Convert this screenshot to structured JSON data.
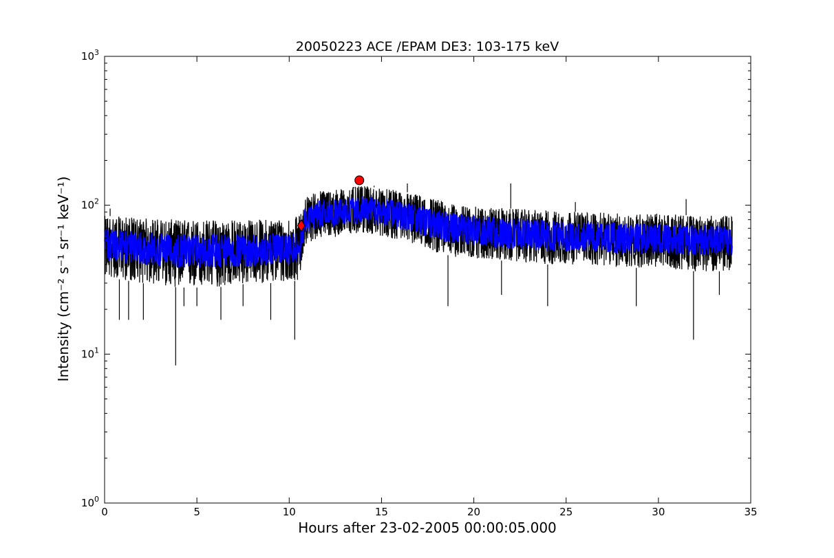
{
  "chart_data": {
    "type": "line",
    "title": "20050223 ACE /EPAM DE3: 103-175 keV",
    "xlabel": "Hours after 23-02-2005 00:00:05.000",
    "ylabel": "Intensity (cm⁻² s⁻¹ sr⁻¹ keV⁻¹)",
    "xlim": [
      0,
      35
    ],
    "ylim": [
      1,
      1000
    ],
    "yscale": "log",
    "grid": false,
    "x_ticks": [
      "0",
      "5",
      "10",
      "15",
      "20",
      "25",
      "30",
      "35"
    ],
    "y_ticks": [
      {
        "base": "10",
        "exp": "0"
      },
      {
        "base": "10",
        "exp": "1"
      },
      {
        "base": "10",
        "exp": "2"
      },
      {
        "base": "10",
        "exp": "3"
      }
    ],
    "series": [
      {
        "kind": "raw",
        "color": "#000000",
        "x": [
          0,
          2,
          4,
          6,
          8,
          10,
          10.6,
          10.8,
          11.5,
          13,
          14,
          15,
          16,
          17,
          18,
          19,
          20,
          22,
          24,
          26,
          28,
          30,
          32,
          34
        ],
        "y": [
          55,
          52,
          50,
          50,
          50,
          52,
          55,
          78,
          88,
          92,
          95,
          92,
          88,
          82,
          75,
          70,
          68,
          65,
          63,
          62,
          60,
          60,
          58,
          58
        ],
        "low": [
          33,
          30,
          28,
          28,
          30,
          30,
          32,
          52,
          60,
          62,
          65,
          62,
          58,
          54,
          48,
          45,
          44,
          42,
          40,
          40,
          38,
          38,
          36,
          36
        ],
        "high": [
          85,
          82,
          80,
          80,
          80,
          82,
          85,
          112,
          125,
          130,
          135,
          130,
          125,
          118,
          110,
          100,
          98,
          95,
          92,
          90,
          88,
          88,
          85,
          85
        ],
        "spikes_down": [
          [
            0.8,
            17
          ],
          [
            1.3,
            17
          ],
          [
            2.1,
            17
          ],
          [
            3.85,
            8.4
          ],
          [
            4.3,
            21
          ],
          [
            5.0,
            21
          ],
          [
            6.3,
            17
          ],
          [
            7.5,
            21
          ],
          [
            9.0,
            17
          ],
          [
            10.3,
            12.5
          ],
          [
            18.6,
            21
          ],
          [
            21.5,
            25
          ],
          [
            24.0,
            21
          ],
          [
            28.8,
            21
          ],
          [
            31.9,
            12.5
          ],
          [
            33.3,
            25
          ]
        ],
        "spikes_up": [
          [
            0.3,
            95
          ],
          [
            13.5,
            130
          ],
          [
            14.6,
            135
          ],
          [
            16.4,
            140
          ],
          [
            22.0,
            140
          ],
          [
            25.5,
            105
          ],
          [
            31.5,
            110
          ]
        ]
      },
      {
        "kind": "smoothed",
        "color": "#0000ff",
        "x": [
          0,
          2,
          4,
          6,
          8,
          10,
          10.6,
          10.8,
          11.5,
          13,
          14,
          15,
          16,
          17,
          18,
          19,
          20,
          22,
          24,
          26,
          28,
          30,
          32,
          34
        ],
        "y": [
          55,
          52,
          50,
          50,
          50,
          52,
          55,
          78,
          88,
          92,
          95,
          92,
          88,
          82,
          75,
          70,
          68,
          65,
          63,
          62,
          60,
          60,
          58,
          58
        ],
        "low": [
          42,
          40,
          38,
          38,
          39,
          40,
          42,
          62,
          70,
          72,
          75,
          72,
          68,
          64,
          58,
          55,
          53,
          51,
          49,
          49,
          47,
          47,
          46,
          46
        ],
        "high": [
          70,
          66,
          64,
          64,
          64,
          66,
          70,
          95,
          108,
          112,
          115,
          112,
          108,
          102,
          94,
          88,
          86,
          82,
          80,
          78,
          76,
          76,
          74,
          74
        ]
      }
    ],
    "markers": [
      {
        "shape": "diamond",
        "x": 10.65,
        "y": 73,
        "color": "#ff0000"
      },
      {
        "shape": "circle",
        "x": 13.8,
        "y": 147,
        "color": "#ff0000"
      }
    ]
  }
}
